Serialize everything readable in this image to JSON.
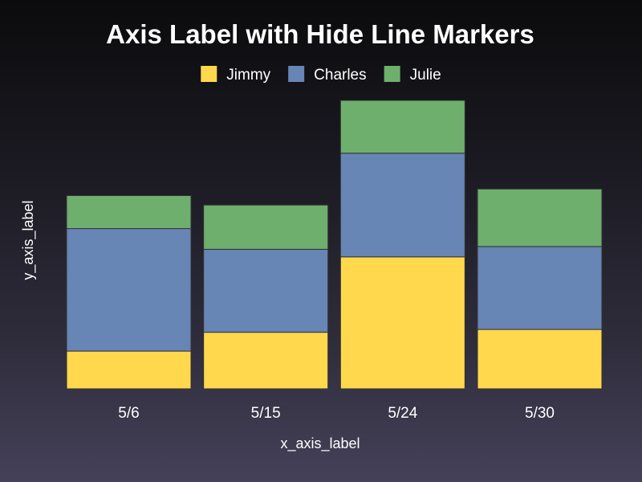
{
  "chart_data": {
    "type": "bar",
    "stacked": true,
    "title": "Axis Label with Hide Line Markers",
    "xlabel": "x_axis_label",
    "ylabel": "y_axis_label",
    "categories": [
      "5/6",
      "5/15",
      "5/24",
      "5/30"
    ],
    "series": [
      {
        "name": "Jimmy",
        "color": "#ffd84e",
        "values": [
          4,
          6,
          14,
          6.3
        ]
      },
      {
        "name": "Charles",
        "color": "#6785b5",
        "values": [
          13,
          8.8,
          11,
          8.8
        ]
      },
      {
        "name": "Julie",
        "color": "#6eaf6e",
        "values": [
          3.5,
          4.7,
          5.6,
          6.1
        ]
      }
    ],
    "ylim": [
      0,
      30.6
    ],
    "grid": false,
    "y_axis_ticks_visible": false,
    "legend": "top-center"
  }
}
